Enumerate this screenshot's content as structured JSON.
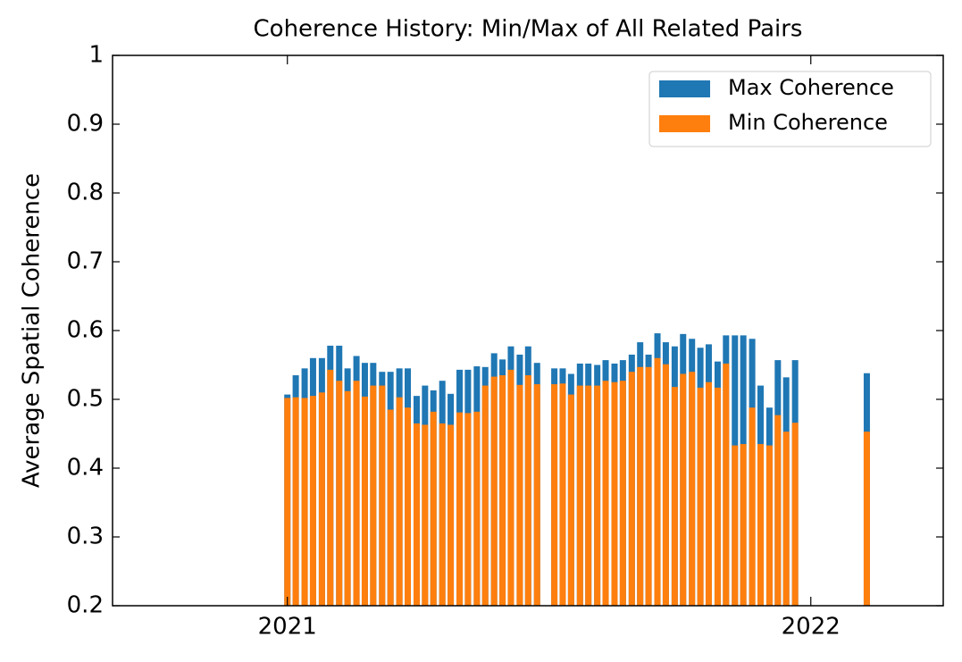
{
  "chart_data": {
    "type": "bar",
    "title": "Coherence History: Min/Max of All Related Pairs",
    "ylabel": "Average Spatial Coherence",
    "x": [
      2021.0,
      2021.016,
      2021.033,
      2021.049,
      2021.066,
      2021.082,
      2021.099,
      2021.115,
      2021.132,
      2021.148,
      2021.164,
      2021.181,
      2021.197,
      2021.214,
      2021.23,
      2021.247,
      2021.263,
      2021.279,
      2021.296,
      2021.312,
      2021.329,
      2021.345,
      2021.362,
      2021.378,
      2021.395,
      2021.411,
      2021.427,
      2021.444,
      2021.46,
      2021.477,
      2021.51,
      2021.526,
      2021.542,
      2021.559,
      2021.575,
      2021.592,
      2021.608,
      2021.625,
      2021.641,
      2021.658,
      2021.674,
      2021.69,
      2021.707,
      2021.723,
      2021.74,
      2021.756,
      2021.773,
      2021.789,
      2021.805,
      2021.822,
      2021.838,
      2021.855,
      2021.871,
      2021.888,
      2021.904,
      2021.921,
      2021.937,
      2021.953,
      2021.97,
      2022.107
    ],
    "series": [
      {
        "name": "Max Coherence",
        "color": "#1f77b4",
        "values": [
          0.507,
          0.535,
          0.545,
          0.56,
          0.56,
          0.578,
          0.578,
          0.545,
          0.563,
          0.553,
          0.553,
          0.54,
          0.54,
          0.545,
          0.545,
          0.505,
          0.52,
          0.513,
          0.527,
          0.508,
          0.543,
          0.543,
          0.548,
          0.547,
          0.567,
          0.558,
          0.577,
          0.565,
          0.577,
          0.553,
          0.545,
          0.545,
          0.537,
          0.552,
          0.552,
          0.55,
          0.557,
          0.552,
          0.557,
          0.565,
          0.583,
          0.565,
          0.596,
          0.583,
          0.577,
          0.595,
          0.588,
          0.575,
          0.58,
          0.555,
          0.593,
          0.593,
          0.593,
          0.588,
          0.52,
          0.488,
          0.557,
          0.532,
          0.557,
          0.538
        ]
      },
      {
        "name": "Min Coherence",
        "color": "#ff7f0e",
        "values": [
          0.502,
          0.503,
          0.502,
          0.505,
          0.51,
          0.543,
          0.527,
          0.512,
          0.527,
          0.504,
          0.52,
          0.52,
          0.485,
          0.503,
          0.488,
          0.465,
          0.463,
          0.482,
          0.465,
          0.463,
          0.481,
          0.48,
          0.482,
          0.52,
          0.533,
          0.535,
          0.543,
          0.521,
          0.535,
          0.522,
          0.522,
          0.523,
          0.507,
          0.52,
          0.52,
          0.52,
          0.527,
          0.525,
          0.527,
          0.54,
          0.547,
          0.547,
          0.56,
          0.551,
          0.518,
          0.537,
          0.54,
          0.517,
          0.525,
          0.517,
          0.552,
          0.433,
          0.435,
          0.488,
          0.435,
          0.433,
          0.477,
          0.453,
          0.466,
          0.453
        ]
      }
    ],
    "xlim": [
      2020.666,
      2022.253
    ],
    "xticks": [
      2021,
      2022
    ],
    "ylim": [
      0.2,
      1.0
    ],
    "yticks": [
      0.2,
      0.3,
      0.4,
      0.5,
      0.6,
      0.7,
      0.8,
      0.9,
      1.0
    ],
    "legend": "upper right"
  }
}
